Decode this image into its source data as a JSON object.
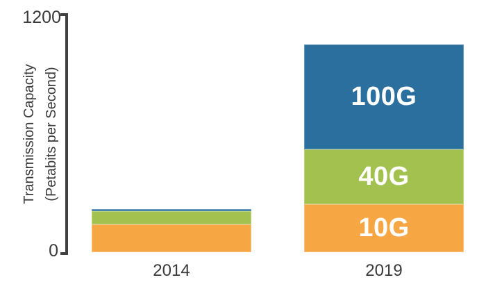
{
  "chart_data": {
    "type": "bar",
    "stacked": true,
    "categories": [
      "2014",
      "2019"
    ],
    "series": [
      {
        "name": "10G",
        "color": "#F7A644",
        "values": [
          140,
          240
        ]
      },
      {
        "name": "40G",
        "color": "#A2C14F",
        "values": [
          65,
          275
        ]
      },
      {
        "name": "100G",
        "color": "#2A6F9D",
        "values": [
          10,
          530
        ]
      }
    ],
    "ylabel_line1": "Transmission Capacity",
    "ylabel_line2": "(Petabits per Second)",
    "ylim": [
      0,
      1200
    ],
    "ytick_labels": [
      "1200",
      "0"
    ],
    "grid": false,
    "legend": "none (segments labeled in-bar)",
    "segment_label_color": "#FFFFFF",
    "axis_color": "#404040",
    "text_color": "#3A3A3A"
  }
}
